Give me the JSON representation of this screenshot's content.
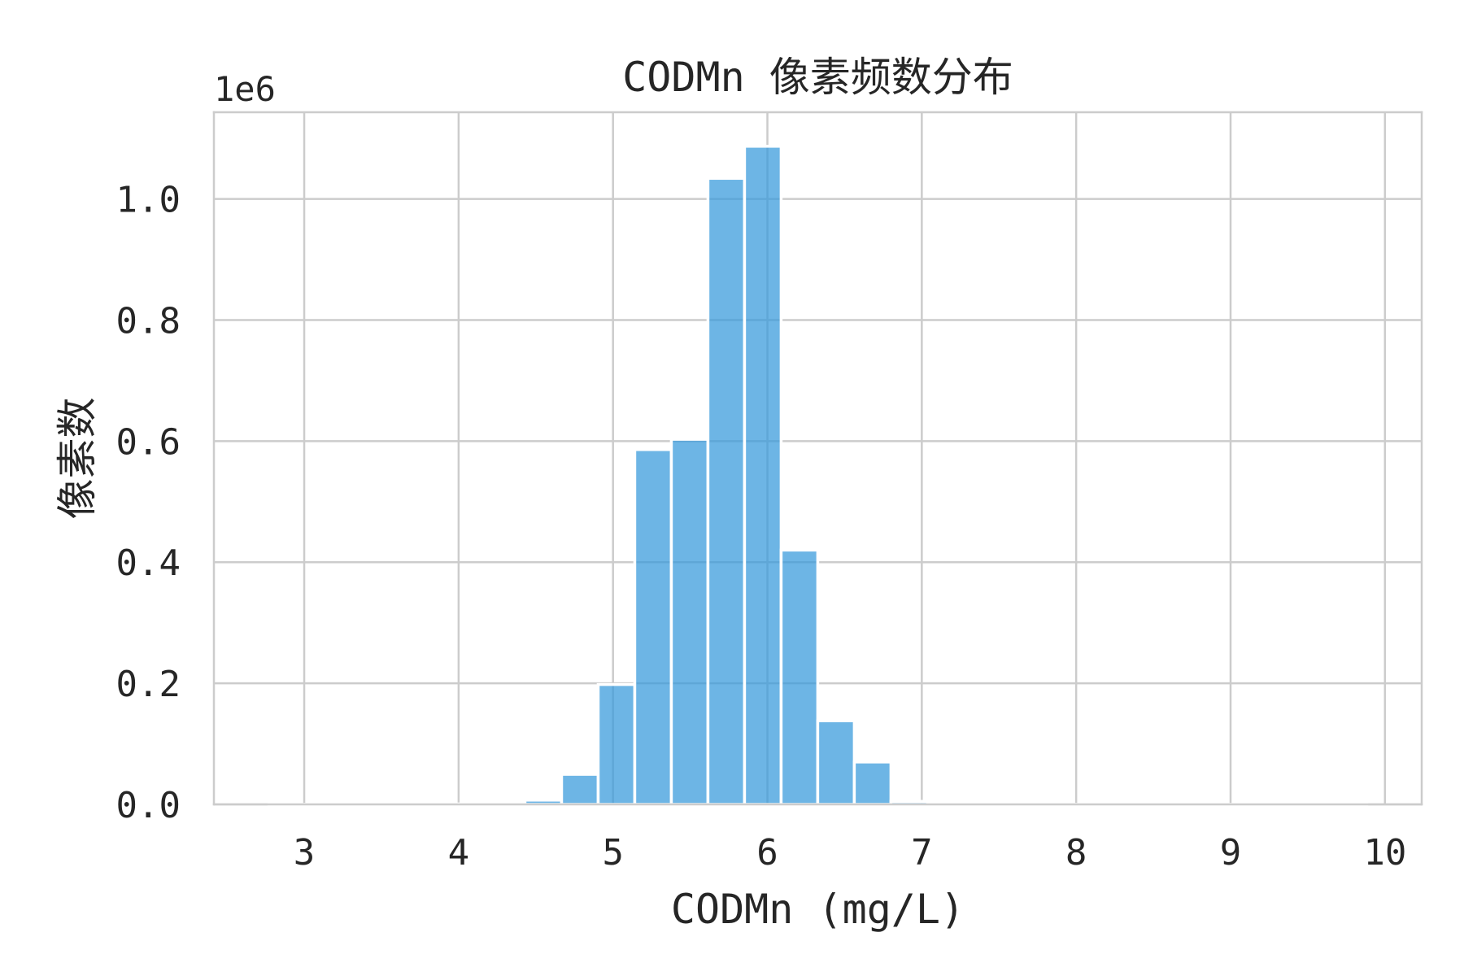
{
  "chart_data": {
    "type": "bar",
    "title": "CODMn 像素频数分布",
    "xlabel": "CODMn (mg/L)",
    "ylabel": "像素数",
    "y_offset_text": "1e6",
    "grid": true,
    "xlim": [
      2.415,
      10.238
    ],
    "ylim": [
      0,
      1143200
    ],
    "xticks": [
      3,
      4,
      5,
      6,
      7,
      8,
      9,
      10
    ],
    "xtick_labels": [
      "3",
      "4",
      "5",
      "6",
      "7",
      "8",
      "9",
      "10"
    ],
    "yticks": [
      0,
      200000,
      400000,
      600000,
      800000,
      1000000
    ],
    "ytick_labels": [
      "0.0",
      "0.2",
      "0.4",
      "0.6",
      "0.8",
      "1.0"
    ],
    "bin_edges": [
      2.771,
      3.008,
      3.245,
      3.482,
      3.719,
      3.956,
      4.193,
      4.43,
      4.667,
      4.904,
      5.141,
      5.378,
      5.615,
      5.852,
      6.089,
      6.326,
      6.563,
      6.8,
      7.038,
      7.275,
      7.512,
      7.749,
      7.986,
      8.223,
      8.46,
      8.697,
      8.934,
      9.171,
      9.408,
      9.645,
      9.882
    ],
    "values": [
      20,
      10,
      30,
      80,
      300,
      800,
      1500,
      7000,
      49600,
      198000,
      586000,
      603000,
      1034000,
      1087000,
      420000,
      138000,
      70000,
      5000,
      1200,
      500,
      250,
      150,
      100,
      80,
      50,
      40,
      30,
      20,
      10,
      10
    ],
    "colors": {
      "bar": "#3498db",
      "bar_edge": "#ffffff",
      "grid": "#cccccc",
      "spine": "#cccccc",
      "text": "#262626"
    }
  }
}
